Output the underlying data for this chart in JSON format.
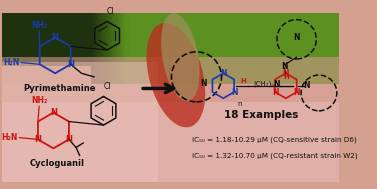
{
  "pyrimethamine_label": "Pyrimethamine",
  "cycloguanil_label": "Cycloguanil",
  "examples_text": "18 Examples",
  "ic50_line1": "IC₅₀ = 1.18-10.29 μM (CQ-sensitive strain D6)",
  "ic50_line2": "IC₅₀ = 1.32-10.70 μM (CQ-resistant strain W2)",
  "blue_color": "#1a3aaa",
  "red_color": "#cc1111",
  "black_color": "#111111",
  "bond_color": "#111111",
  "dashed_color": "#111111",
  "bg_topleft_dark": "#1e3210",
  "bg_topright_green": "#5c9020",
  "bg_center_skin": "#d4a090",
  "bg_bottom_skin": "#e8c0b0",
  "bg_mosquito_red": "#c03828",
  "bg_mosquito_body": "#b8a070"
}
